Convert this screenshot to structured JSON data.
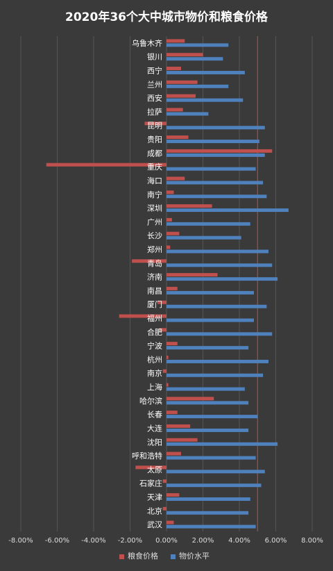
{
  "chart_data": {
    "type": "bar",
    "orientation": "horizontal",
    "title": "2020年36个大中城市物价和粮食价格",
    "categories": [
      "乌鲁木齐",
      "银川",
      "西宁",
      "兰州",
      "西安",
      "拉萨",
      "昆明",
      "贵阳",
      "成都",
      "重庆",
      "海口",
      "南宁",
      "深圳",
      "广州",
      "长沙",
      "郑州",
      "青岛",
      "济南",
      "南昌",
      "厦门",
      "福州",
      "合肥",
      "宁波",
      "杭州",
      "南京",
      "上海",
      "哈尔滨",
      "长春",
      "大连",
      "沈阳",
      "呼和浩特",
      "太原",
      "石家庄",
      "天津",
      "北京",
      "武汉"
    ],
    "series": [
      {
        "name": "粮食价格",
        "color": "#c0504d",
        "values": [
          1.0,
          2.0,
          0.8,
          1.7,
          1.6,
          0.9,
          -1.2,
          1.2,
          5.8,
          -6.6,
          1.0,
          0.4,
          2.5,
          0.3,
          0.7,
          0.2,
          -1.9,
          2.8,
          0.6,
          -0.5,
          -2.6,
          -0.4,
          0.6,
          0.1,
          -0.2,
          0.1,
          2.6,
          0.6,
          1.3,
          1.7,
          0.8,
          -1.7,
          -0.2,
          0.7,
          -0.2,
          0.4
        ]
      },
      {
        "name": "物价水平",
        "color": "#4f81bd",
        "values": [
          3.4,
          3.1,
          4.3,
          3.4,
          4.2,
          2.3,
          5.4,
          5.1,
          5.4,
          4.9,
          5.3,
          5.5,
          6.7,
          4.6,
          4.1,
          5.6,
          5.8,
          6.1,
          4.8,
          5.5,
          4.8,
          5.8,
          4.5,
          5.6,
          5.3,
          4.3,
          4.5,
          5.0,
          4.5,
          6.1,
          4.9,
          5.4,
          5.2,
          4.6,
          4.5,
          4.9
        ]
      }
    ],
    "xlim": [
      -8,
      8
    ],
    "xticks": [
      "-8.00%",
      "-6.00%",
      "-4.00%",
      "-2.00%",
      "0.00%",
      "2.00%",
      "4.00%",
      "6.00%",
      "8.00%"
    ],
    "reference_line": 5.0,
    "reference_line_color": "#c0504d",
    "legend": "bottom",
    "grid": "vertical"
  }
}
